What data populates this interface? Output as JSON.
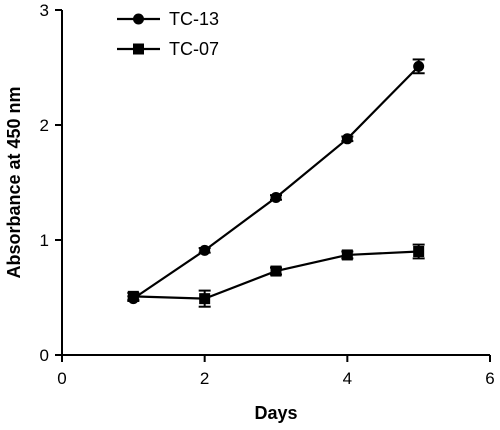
{
  "chart_data": {
    "type": "line",
    "title": "",
    "xlabel": "Days",
    "ylabel": "Absorbance at 450 nm",
    "xlim": [
      0,
      6
    ],
    "ylim": [
      0,
      3
    ],
    "x_ticks": [
      0,
      2,
      4,
      6
    ],
    "y_ticks": [
      0,
      1,
      2,
      3
    ],
    "grid": false,
    "legend_position": "top-left",
    "series": [
      {
        "name": "TC-13",
        "marker": "circle",
        "color": "#000000",
        "x": [
          1,
          2,
          3,
          4,
          5
        ],
        "y": [
          0.49,
          0.91,
          1.37,
          1.88,
          2.51
        ],
        "error": [
          0.02,
          0.02,
          0.02,
          0.02,
          0.06
        ]
      },
      {
        "name": "TC-07",
        "marker": "square",
        "color": "#000000",
        "x": [
          1,
          2,
          3,
          4,
          5
        ],
        "y": [
          0.51,
          0.49,
          0.73,
          0.87,
          0.9
        ],
        "error": [
          0.03,
          0.07,
          0.03,
          0.03,
          0.06
        ]
      }
    ]
  }
}
